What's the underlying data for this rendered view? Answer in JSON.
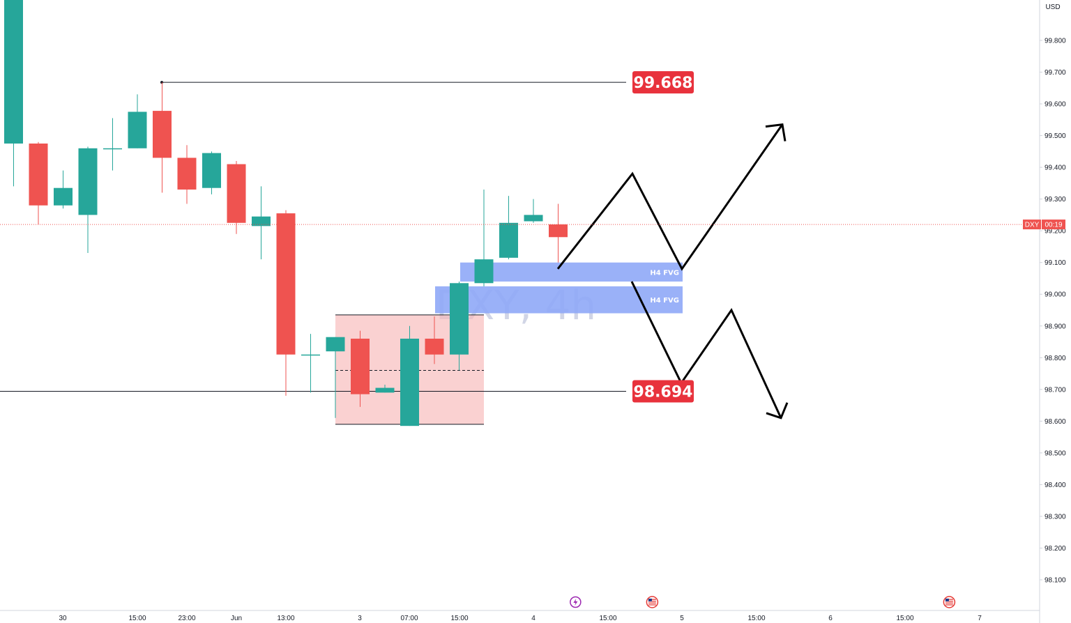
{
  "chart_data": {
    "type": "candlestick",
    "symbol": "DXY",
    "timeframe": "4h",
    "watermark": "DXY, 4h",
    "currency": "USD",
    "ylim": [
      98.02,
      99.93
    ],
    "y_ticks": [
      "99.800",
      "99.700",
      "99.600",
      "99.500",
      "99.400",
      "99.300",
      "99.200",
      "99.100",
      "99.000",
      "98.900",
      "98.800",
      "98.700",
      "98.600",
      "98.500",
      "98.400",
      "98.300",
      "98.200",
      "98.100"
    ],
    "x_labels": [
      "30",
      "15:00",
      "23:00",
      "Jun",
      "13:00",
      "3",
      "07:00",
      "15:00",
      "4",
      "15:00",
      "5",
      "15:00",
      "6",
      "15:00",
      "7"
    ],
    "candles": [
      {
        "o": 99.475,
        "h": 99.93,
        "l": 99.34,
        "c": 99.93
      },
      {
        "o": 99.475,
        "h": 99.48,
        "l": 99.22,
        "c": 99.28
      },
      {
        "o": 99.28,
        "h": 99.39,
        "l": 99.27,
        "c": 99.335
      },
      {
        "o": 99.25,
        "h": 99.465,
        "l": 99.13,
        "c": 99.46
      },
      {
        "o": 99.46,
        "h": 99.555,
        "l": 99.39,
        "c": 99.46
      },
      {
        "o": 99.46,
        "h": 99.63,
        "l": 99.46,
        "c": 99.575
      },
      {
        "o": 99.578,
        "h": 99.668,
        "l": 99.32,
        "c": 99.43
      },
      {
        "o": 99.43,
        "h": 99.47,
        "l": 99.285,
        "c": 99.33
      },
      {
        "o": 99.335,
        "h": 99.45,
        "l": 99.315,
        "c": 99.445
      },
      {
        "o": 99.41,
        "h": 99.42,
        "l": 99.19,
        "c": 99.225
      },
      {
        "o": 99.215,
        "h": 99.34,
        "l": 99.11,
        "c": 99.245
      },
      {
        "o": 99.255,
        "h": 99.265,
        "l": 98.68,
        "c": 98.81
      },
      {
        "o": 98.81,
        "h": 98.875,
        "l": 98.69,
        "c": 98.81
      },
      {
        "o": 98.82,
        "h": 98.865,
        "l": 98.61,
        "c": 98.865
      },
      {
        "o": 98.86,
        "h": 98.885,
        "l": 98.645,
        "c": 98.685
      },
      {
        "o": 98.69,
        "h": 98.715,
        "l": 98.69,
        "c": 98.705
      },
      {
        "o": 98.585,
        "h": 98.9,
        "l": 98.585,
        "c": 98.86
      },
      {
        "o": 98.86,
        "h": 98.93,
        "l": 98.78,
        "c": 98.81
      },
      {
        "o": 98.81,
        "h": 99.04,
        "l": 98.76,
        "c": 99.035
      },
      {
        "o": 99.035,
        "h": 99.33,
        "l": 99.025,
        "c": 99.11
      },
      {
        "o": 99.115,
        "h": 99.31,
        "l": 99.11,
        "c": 99.225
      },
      {
        "o": 99.23,
        "h": 99.3,
        "l": 99.225,
        "c": 99.25
      },
      {
        "o": 99.22,
        "h": 99.285,
        "l": 99.1,
        "c": 99.18
      }
    ],
    "levels": [
      {
        "value": 99.668,
        "label": "99.668"
      },
      {
        "value": 98.694,
        "label": "98.694"
      }
    ],
    "fvg_zones": [
      {
        "label": "H4 FVG",
        "top": 99.1,
        "bottom": 99.04
      },
      {
        "label": "H4 FVG",
        "top": 99.025,
        "bottom": 98.94
      }
    ],
    "range_box": {
      "top": 98.935,
      "bottom": 98.59,
      "mid": 98.76
    },
    "projection_up": [
      99.08,
      99.38,
      99.08,
      99.535
    ],
    "projection_down": [
      99.04,
      98.72,
      98.95,
      98.61
    ],
    "last_price": {
      "value": 99.22,
      "symbol_tag": "DXY",
      "countdown": "00:19"
    },
    "colors": {
      "up": "#26a69a",
      "down": "#ef5350",
      "level_label": "#e8323c",
      "fvg": "#8fa9f7",
      "range_box": "#f7b9b9",
      "last_price_line": "#ef5350",
      "event_lightning": "#9c27b0"
    },
    "events": [
      {
        "type": "lightning-icon",
        "slot": 22.7
      },
      {
        "type": "us-flag-icon",
        "slot": 25.8
      },
      {
        "type": "us-flag-icon",
        "slot": 37.8
      }
    ]
  }
}
